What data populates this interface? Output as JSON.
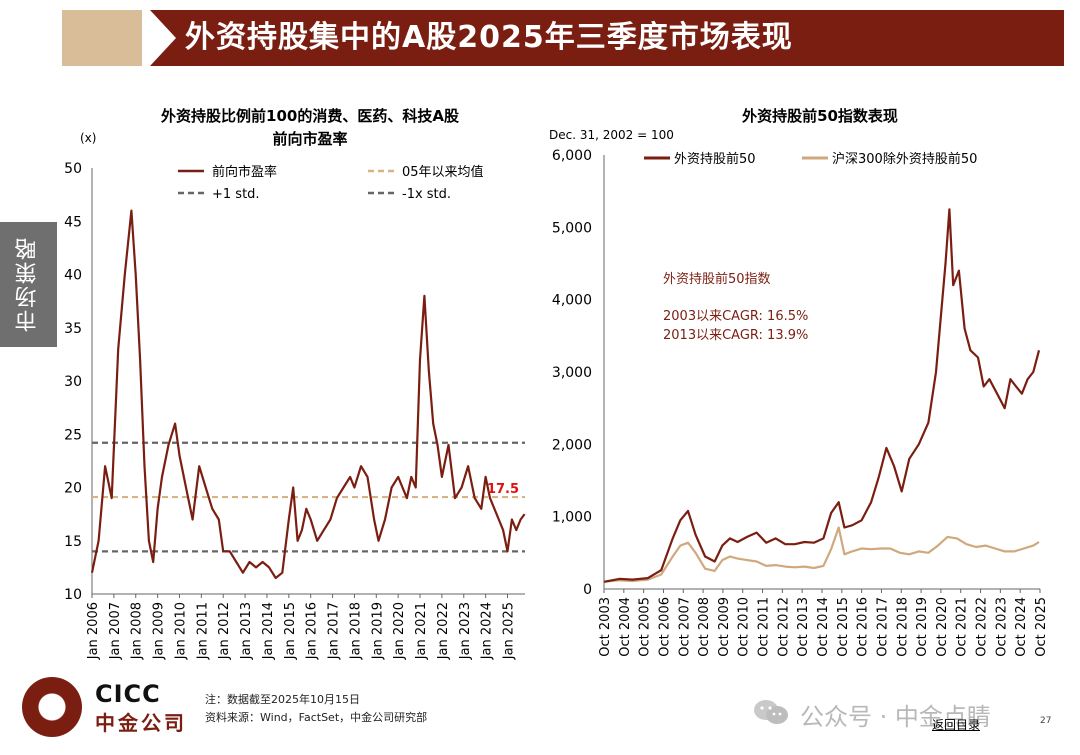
{
  "header": {
    "title": "外资持股集中的A股2025年三季度市场表现"
  },
  "side_tab": {
    "label": "市场策略"
  },
  "footer": {
    "note": "注：数据截至2025年10月15日",
    "source": "资料来源：Wind，FactSet，中金公司研究部",
    "logo_en": "CICC",
    "logo_cn": "中金公司",
    "watermark": "公众号 · 中金点睛",
    "back_link": "返回目录",
    "page_number": "27"
  },
  "colors": {
    "brand": "#7b1e12",
    "accent": "#d9bd99",
    "series_dark": "#7b1e12",
    "series_light": "#cfa97d",
    "std_line": "#666666",
    "mean_line": "#d7b486"
  },
  "chart_data": [
    {
      "type": "line",
      "title": "外资持股比例前100的消费、医药、科技A股",
      "subtitle": "前向市盈率",
      "ylabel": "(x)",
      "ylim": [
        10,
        50
      ],
      "yticks": [
        10,
        15,
        20,
        25,
        30,
        35,
        40,
        45,
        50
      ],
      "x_tick_labels": [
        "Jan 2006",
        "Jan 2007",
        "Jan 2008",
        "Jan 2009",
        "Jan 2010",
        "Jan 2011",
        "Jan 2012",
        "Jan 2013",
        "Jan 2014",
        "Jan 2015",
        "Jan 2016",
        "Jan 2017",
        "Jan 2018",
        "Jan 2019",
        "Jan 2020",
        "Jan 2021",
        "Jan 2022",
        "Jan 2023",
        "Jan 2024",
        "Jan 2025"
      ],
      "xlim": [
        2006.0,
        2025.8
      ],
      "legend": [
        "前向市盈率",
        "05年以来均值",
        "+1 std.",
        "-1x std."
      ],
      "legend_position": "top",
      "reference_lines": {
        "mean": 19.1,
        "plus_1_std": 24.2,
        "minus_1_std": 14.0
      },
      "annotation": "17.5",
      "series": [
        {
          "name": "前向市盈率",
          "x": [
            2006.0,
            2006.3,
            2006.6,
            2006.9,
            2007.2,
            2007.5,
            2007.8,
            2008.0,
            2008.2,
            2008.4,
            2008.6,
            2008.8,
            2009.0,
            2009.2,
            2009.5,
            2009.8,
            2010.0,
            2010.3,
            2010.6,
            2010.9,
            2011.2,
            2011.5,
            2011.8,
            2012.0,
            2012.3,
            2012.6,
            2012.9,
            2013.2,
            2013.5,
            2013.8,
            2014.1,
            2014.4,
            2014.7,
            2015.0,
            2015.2,
            2015.4,
            2015.6,
            2015.8,
            2016.0,
            2016.3,
            2016.6,
            2016.9,
            2017.2,
            2017.5,
            2017.8,
            2018.0,
            2018.3,
            2018.6,
            2018.9,
            2019.1,
            2019.4,
            2019.7,
            2020.0,
            2020.2,
            2020.4,
            2020.6,
            2020.8,
            2021.0,
            2021.2,
            2021.4,
            2021.6,
            2021.8,
            2022.0,
            2022.3,
            2022.6,
            2022.9,
            2023.2,
            2023.5,
            2023.8,
            2024.0,
            2024.2,
            2024.4,
            2024.6,
            2024.8,
            2025.0,
            2025.2,
            2025.4,
            2025.6,
            2025.78
          ],
          "y": [
            12,
            15,
            22,
            19,
            33,
            40,
            46,
            40,
            32,
            22,
            15,
            13,
            18,
            21,
            24,
            26,
            23,
            20,
            17,
            22,
            20,
            18,
            17,
            14,
            14,
            13,
            12,
            13,
            12.5,
            13,
            12.5,
            11.5,
            12,
            17,
            20,
            15,
            16,
            18,
            17,
            15,
            16,
            17,
            19,
            20,
            21,
            20,
            22,
            21,
            17,
            15,
            17,
            20,
            21,
            20,
            19,
            21,
            20,
            32,
            38,
            31,
            26,
            24,
            21,
            24,
            19,
            20,
            22,
            19,
            18,
            21,
            19,
            18,
            17,
            16,
            14,
            17,
            16,
            17,
            17.5
          ]
        }
      ]
    },
    {
      "type": "line",
      "title": "外资持股前50指数表现",
      "subtitle": "Dec. 31, 2002 = 100",
      "ylim": [
        0,
        6000
      ],
      "yticks": [
        0,
        1000,
        2000,
        3000,
        4000,
        5000,
        6000
      ],
      "ytick_labels": [
        "0",
        "1,000",
        "2,000",
        "3,000",
        "4,000",
        "5,000",
        "6,000"
      ],
      "x_tick_labels": [
        "Oct 2003",
        "Oct 2004",
        "Oct 2005",
        "Oct 2006",
        "Oct 2007",
        "Oct 2008",
        "Oct 2009",
        "Oct 2010",
        "Oct 2011",
        "Oct 2012",
        "Oct 2013",
        "Oct 2014",
        "Oct 2015",
        "Oct 2016",
        "Oct 2017",
        "Oct 2018",
        "Oct 2019",
        "Oct 2020",
        "Oct 2021",
        "Oct 2022",
        "Oct 2023",
        "Oct 2024",
        "Oct 2025"
      ],
      "xlim": [
        2003.0,
        2025.85
      ],
      "legend": [
        "外资持股前50",
        "沪深300除外资持股前50"
      ],
      "legend_position": "top",
      "annotations": [
        "外资持股前50指数",
        "2003以来CAGR: 16.5%",
        "2013以来CAGR: 13.9%"
      ],
      "series": [
        {
          "name": "外资持股前50",
          "x": [
            2003.0,
            2003.8,
            2004.5,
            2005.3,
            2006.0,
            2006.6,
            2007.0,
            2007.4,
            2007.8,
            2008.3,
            2008.8,
            2009.2,
            2009.6,
            2010.0,
            2010.5,
            2011.0,
            2011.5,
            2012.0,
            2012.5,
            2013.0,
            2013.5,
            2014.0,
            2014.5,
            2014.9,
            2015.3,
            2015.6,
            2016.0,
            2016.5,
            2017.0,
            2017.4,
            2017.8,
            2018.2,
            2018.6,
            2019.0,
            2019.5,
            2020.0,
            2020.4,
            2020.7,
            2020.9,
            2021.1,
            2021.3,
            2021.6,
            2021.9,
            2022.2,
            2022.6,
            2022.9,
            2023.2,
            2023.6,
            2024.0,
            2024.3,
            2024.6,
            2024.9,
            2025.2,
            2025.5,
            2025.8
          ],
          "y": [
            100,
            140,
            130,
            150,
            260,
            700,
            950,
            1080,
            750,
            450,
            380,
            600,
            700,
            650,
            720,
            780,
            640,
            700,
            620,
            620,
            650,
            640,
            700,
            1050,
            1200,
            850,
            880,
            950,
            1200,
            1550,
            1950,
            1700,
            1350,
            1800,
            2000,
            2300,
            3000,
            3900,
            4500,
            5250,
            4200,
            4400,
            3600,
            3300,
            3200,
            2800,
            2900,
            2700,
            2500,
            2900,
            2800,
            2700,
            2900,
            3000,
            3300
          ]
        },
        {
          "name": "沪深300除外资持股前50",
          "x": [
            2003.0,
            2003.8,
            2004.5,
            2005.3,
            2006.0,
            2006.6,
            2007.0,
            2007.4,
            2007.8,
            2008.3,
            2008.8,
            2009.2,
            2009.6,
            2010.0,
            2010.5,
            2011.0,
            2011.5,
            2012.0,
            2012.5,
            2013.0,
            2013.5,
            2014.0,
            2014.5,
            2014.9,
            2015.3,
            2015.6,
            2016.0,
            2016.5,
            2017.0,
            2017.5,
            2018.0,
            2018.5,
            2019.0,
            2019.5,
            2020.0,
            2020.5,
            2021.0,
            2021.5,
            2022.0,
            2022.5,
            2023.0,
            2023.5,
            2024.0,
            2024.5,
            2025.0,
            2025.5,
            2025.8
          ],
          "y": [
            100,
            120,
            110,
            130,
            200,
            450,
            600,
            640,
            500,
            280,
            250,
            400,
            450,
            420,
            400,
            380,
            320,
            330,
            310,
            300,
            310,
            290,
            320,
            550,
            850,
            480,
            520,
            560,
            550,
            560,
            560,
            500,
            480,
            520,
            500,
            600,
            720,
            700,
            620,
            580,
            600,
            560,
            520,
            520,
            560,
            600,
            650
          ]
        }
      ]
    }
  ]
}
